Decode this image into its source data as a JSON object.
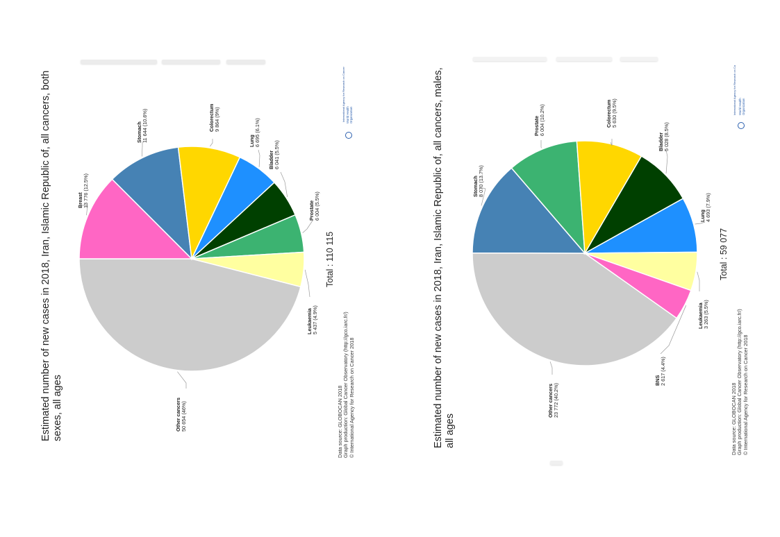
{
  "chart_data": [
    {
      "type": "pie",
      "title": "Estimated number of new cases in 2018, Iran, Islamic Republic of, all cancers, both sexes, all ages",
      "total_label": "Total : 110 115",
      "slices": [
        {
          "name": "Other cancers",
          "value_text": "50 654 (46%)",
          "value": 50654,
          "percent": 46.0,
          "color": "#cccccc"
        },
        {
          "name": "Breast",
          "value_text": "13 776 (12.5%)",
          "value": 13776,
          "percent": 12.5,
          "color": "#ff66c4"
        },
        {
          "name": "Stomach",
          "value_text": "11 644 (10.6%)",
          "value": 11644,
          "percent": 10.6,
          "color": "#4682b4"
        },
        {
          "name": "Colorectum",
          "value_text": "9 864 (9%)",
          "value": 9864,
          "percent": 9.0,
          "color": "#ffd700"
        },
        {
          "name": "Lung",
          "value_text": "6 695 (6.1%)",
          "value": 6695,
          "percent": 6.1,
          "color": "#1e90ff"
        },
        {
          "name": "Bladder",
          "value_text": "6 041 (5.5%)",
          "value": 6041,
          "percent": 5.5,
          "color": "#004000"
        },
        {
          "name": "Prostate",
          "value_text": "6 004 (5.5%)",
          "value": 6004,
          "percent": 5.5,
          "color": "#3cb371"
        },
        {
          "name": "Leukaemia",
          "value_text": "5 437 (4.9%)",
          "value": 5437,
          "percent": 4.9,
          "color": "#ffffa0"
        }
      ],
      "source_lines": [
        "Data source: GLOBOCAN 2018",
        "Graph production: Global Cancer Observatory (http://gco.iarc.fr/)",
        "© International Agency for Research on Cancer 2018"
      ],
      "logo_text": "International Agency for Research on Cancer",
      "who_text": [
        "World Health",
        "Organization"
      ]
    },
    {
      "type": "pie",
      "title": "Estimated number of new cases in 2018, Iran, Islamic Republic of, all cancers, males, all ages",
      "total_label": "Total : 59 077",
      "slices": [
        {
          "name": "Other cancers",
          "value_text": "23 772 (40.2%)",
          "value": 23772,
          "percent": 40.2,
          "color": "#cccccc"
        },
        {
          "name": "Stomach",
          "value_text": "8 070 (13.7%)",
          "value": 8070,
          "percent": 13.7,
          "color": "#4682b4"
        },
        {
          "name": "Prostate",
          "value_text": "6 004 (10.2%)",
          "value": 6004,
          "percent": 10.2,
          "color": "#3cb371"
        },
        {
          "name": "Colorectum",
          "value_text": "5 630 (9.5%)",
          "value": 5630,
          "percent": 9.5,
          "color": "#ffd700"
        },
        {
          "name": "Bladder",
          "value_text": "5 028 (8.5%)",
          "value": 5028,
          "percent": 8.5,
          "color": "#004000"
        },
        {
          "name": "Lung",
          "value_text": "4 693 (7.9%)",
          "value": 4693,
          "percent": 7.9,
          "color": "#1e90ff"
        },
        {
          "name": "Leukaemia",
          "value_text": "3 263 (5.5%)",
          "value": 3263,
          "percent": 5.5,
          "color": "#ffffa0"
        },
        {
          "name": "BNS",
          "value_text": "2 617 (4.4%)",
          "value": 2617,
          "percent": 4.4,
          "color": "#ff66c4"
        }
      ],
      "source_lines": [
        "Data source: GLOBOCAN 2018",
        "Graph production: Global Cancer Observatory (http://gco.iarc.fr/)",
        "© International Agency for Research on Cancer 2018"
      ],
      "logo_text": "International Agency for Research on Ca",
      "who_text": [
        "World Health",
        "Organization"
      ]
    }
  ]
}
